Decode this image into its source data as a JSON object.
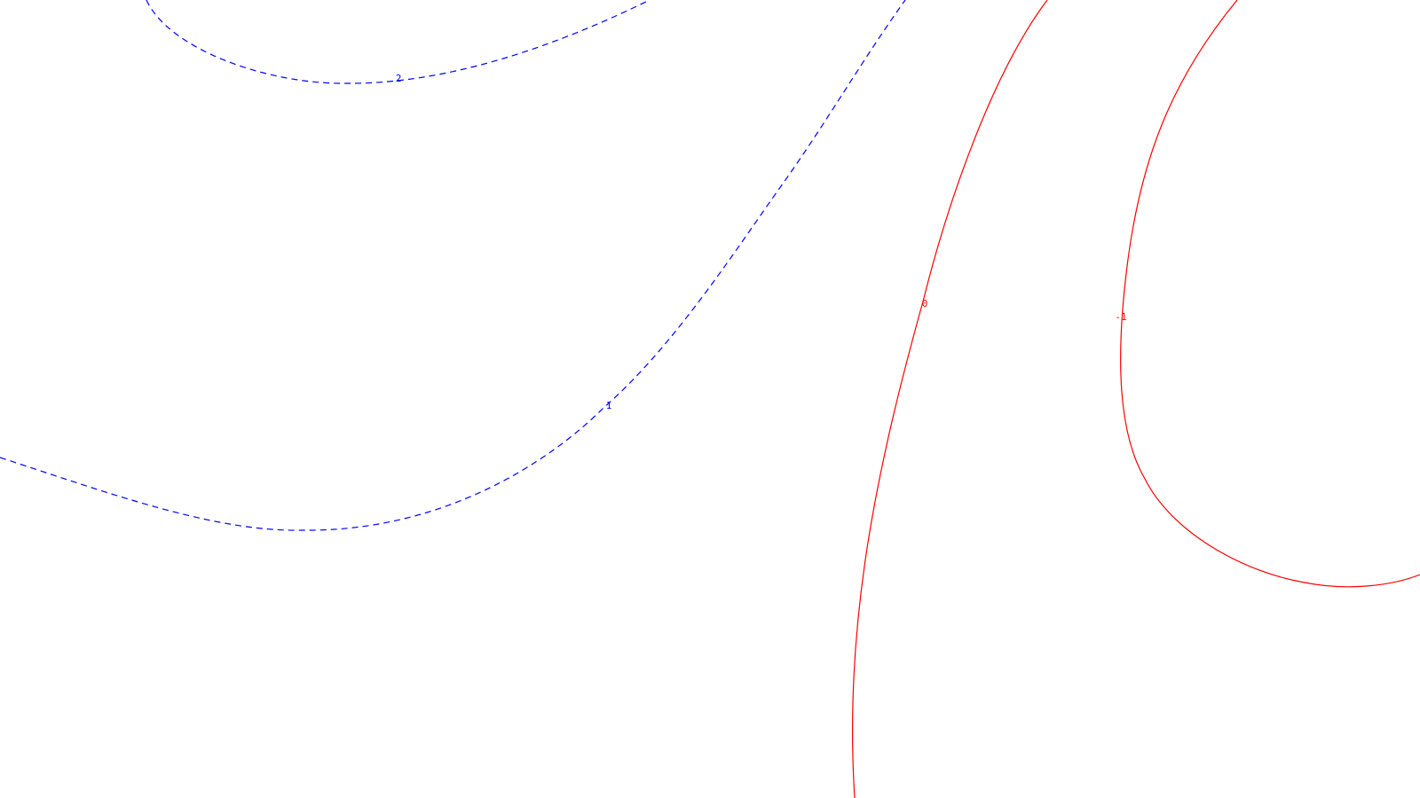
{
  "colors": {
    "background": "#ffffff",
    "positive": "#0000ff",
    "nonpositive": "#ff0000"
  },
  "chart_data": {
    "type": "contour",
    "title": "",
    "xlabel": "",
    "ylabel": "",
    "grid": false,
    "legend": "none",
    "contours": [
      {
        "level": "2",
        "value": 2,
        "label": "2",
        "color": "#0000ff",
        "style": "dashed"
      },
      {
        "level": "1",
        "value": 1,
        "label": "1",
        "color": "#0000ff",
        "style": "dashed"
      },
      {
        "level": "0",
        "value": 0,
        "label": "0",
        "color": "#ff0000",
        "style": "solid"
      },
      {
        "level": "-1",
        "value": -1,
        "label": "-1",
        "color": "#ff0000",
        "style": "solid"
      }
    ]
  }
}
